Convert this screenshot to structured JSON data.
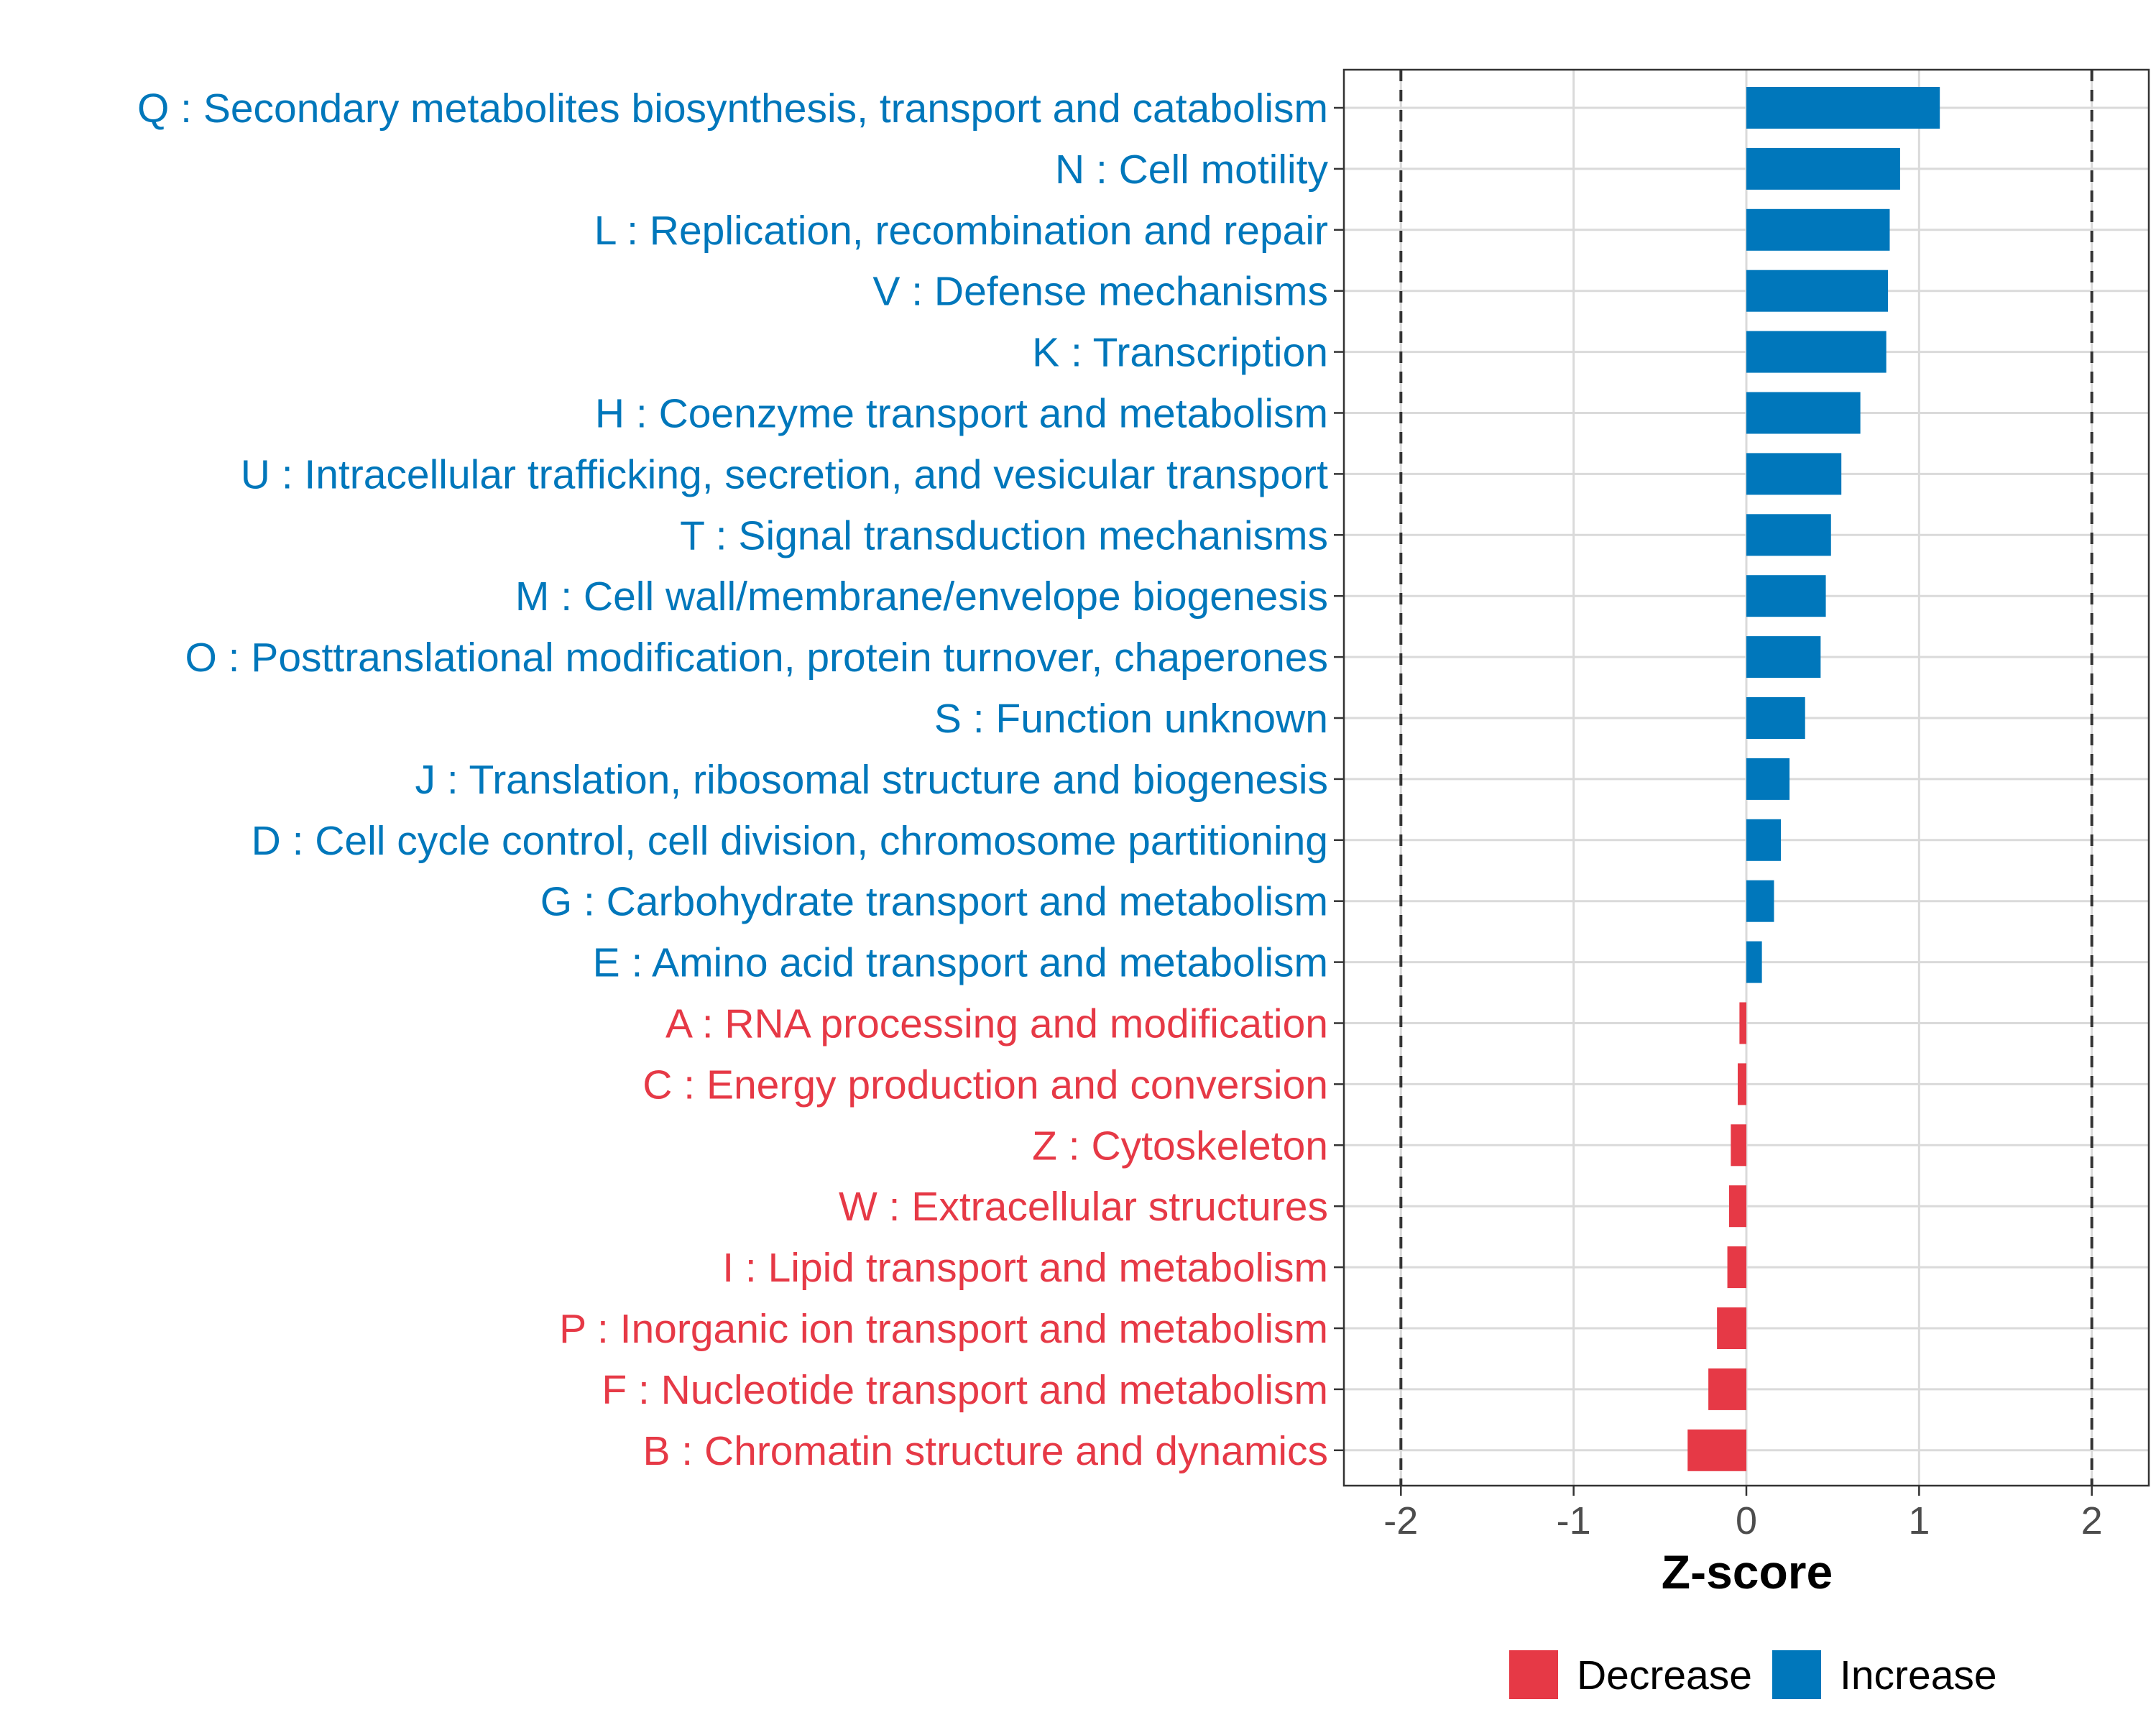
{
  "chart_data": {
    "type": "bar",
    "orientation": "horizontal",
    "xlabel": "Z-score",
    "ylabel": "",
    "xlim": [
      -2.33,
      2.33
    ],
    "xticks": [
      -2,
      -1,
      0,
      1,
      2
    ],
    "xtick_labels": [
      "-2",
      "-1",
      "0",
      "1",
      "2"
    ],
    "reference_lines": [
      -2,
      2
    ],
    "grid": true,
    "legend_position": "bottom",
    "colors": {
      "Increase": "#0077bb",
      "Decrease": "#e63946"
    },
    "legend": [
      {
        "label": "Decrease",
        "color": "#e63946"
      },
      {
        "label": "Increase",
        "color": "#0077bb"
      }
    ],
    "categories": [
      "Q : Secondary metabolites biosynthesis, transport and catabolism",
      "N : Cell motility",
      "L : Replication, recombination and repair",
      "V : Defense mechanisms",
      "K : Transcription",
      "H : Coenzyme transport and metabolism",
      "U : Intracellular trafficking, secretion, and vesicular transport",
      "T : Signal transduction mechanisms",
      "M : Cell wall/membrane/envelope biogenesis",
      "O : Posttranslational modification, protein turnover, chaperones",
      "S : Function unknown",
      "J : Translation, ribosomal structure and biogenesis",
      "D : Cell cycle control, cell division, chromosome partitioning",
      "G : Carbohydrate transport and metabolism",
      "E : Amino acid transport and metabolism",
      "A : RNA processing and modification",
      "C : Energy production and conversion",
      "Z : Cytoskeleton",
      "W : Extracellular structures",
      "I : Lipid transport and metabolism",
      "P : Inorganic ion transport and metabolism",
      "F : Nucleotide transport and metabolism",
      "B : Chromatin structure and dynamics"
    ],
    "values": [
      1.12,
      0.89,
      0.83,
      0.82,
      0.81,
      0.66,
      0.55,
      0.49,
      0.46,
      0.43,
      0.34,
      0.25,
      0.2,
      0.16,
      0.09,
      -0.04,
      -0.05,
      -0.09,
      -0.1,
      -0.11,
      -0.17,
      -0.22,
      -0.34
    ]
  }
}
